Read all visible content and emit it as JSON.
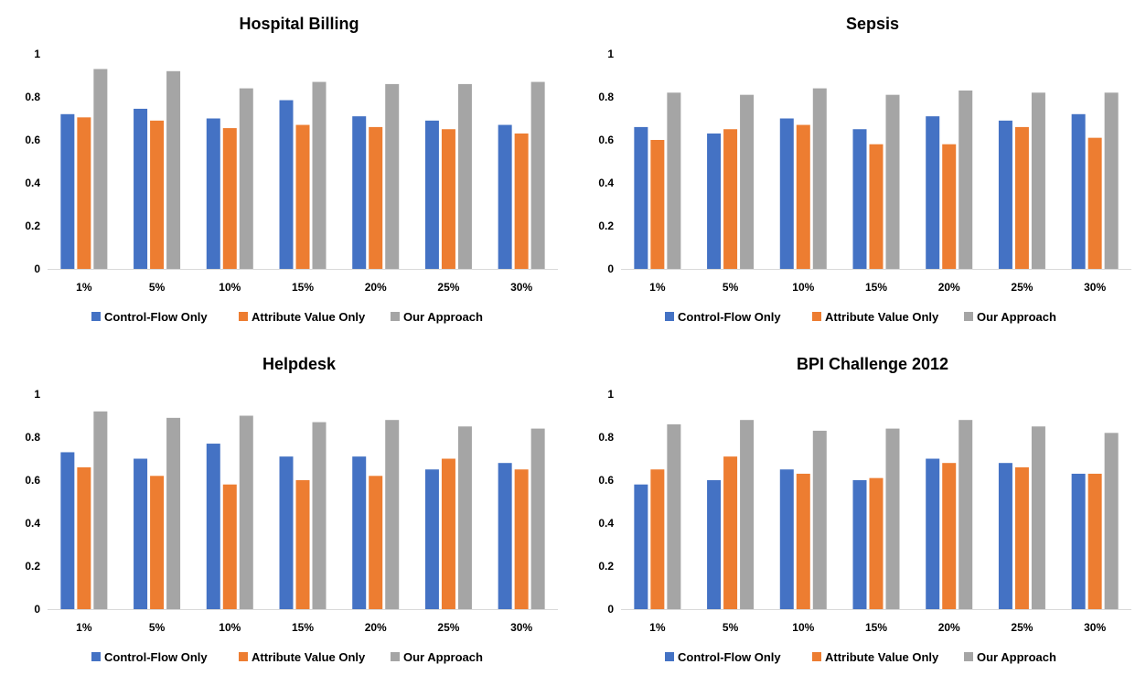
{
  "chart_data": [
    {
      "type": "bar",
      "title": "Hospital Billing",
      "categories": [
        "1%",
        "5%",
        "10%",
        "15%",
        "20%",
        "25%",
        "30%"
      ],
      "ylim": [
        0,
        1
      ],
      "yticks": [
        "0",
        "0.2",
        "0.4",
        "0.6",
        "0.8",
        "1"
      ],
      "grid": false,
      "legend": "bottom",
      "series": [
        {
          "name": "Control-Flow Only",
          "color": "#4472c4",
          "values": [
            0.72,
            0.745,
            0.7,
            0.785,
            0.71,
            0.69,
            0.67
          ]
        },
        {
          "name": "Attribute Value Only",
          "color": "#ed7d31",
          "values": [
            0.705,
            0.69,
            0.655,
            0.67,
            0.66,
            0.65,
            0.63
          ]
        },
        {
          "name": "Our Approach",
          "color": "#a5a5a5",
          "values": [
            0.93,
            0.92,
            0.84,
            0.87,
            0.86,
            0.86,
            0.87
          ]
        }
      ]
    },
    {
      "type": "bar",
      "title": "Sepsis",
      "categories": [
        "1%",
        "5%",
        "10%",
        "15%",
        "20%",
        "25%",
        "30%"
      ],
      "ylim": [
        0,
        1
      ],
      "yticks": [
        "0",
        "0.2",
        "0.4",
        "0.6",
        "0.8",
        "1"
      ],
      "grid": false,
      "legend": "bottom",
      "series": [
        {
          "name": "Control-Flow Only",
          "color": "#4472c4",
          "values": [
            0.66,
            0.63,
            0.7,
            0.65,
            0.71,
            0.69,
            0.72
          ]
        },
        {
          "name": "Attribute Value Only",
          "color": "#ed7d31",
          "values": [
            0.6,
            0.65,
            0.67,
            0.58,
            0.58,
            0.66,
            0.61
          ]
        },
        {
          "name": "Our Approach",
          "color": "#a5a5a5",
          "values": [
            0.82,
            0.81,
            0.84,
            0.81,
            0.83,
            0.82,
            0.82
          ]
        }
      ]
    },
    {
      "type": "bar",
      "title": "Helpdesk",
      "categories": [
        "1%",
        "5%",
        "10%",
        "15%",
        "20%",
        "25%",
        "30%"
      ],
      "ylim": [
        0,
        1
      ],
      "yticks": [
        "0",
        "0.2",
        "0.4",
        "0.6",
        "0.8",
        "1"
      ],
      "grid": false,
      "legend": "bottom",
      "series": [
        {
          "name": "Control-Flow Only",
          "color": "#4472c4",
          "values": [
            0.73,
            0.7,
            0.77,
            0.71,
            0.71,
            0.65,
            0.68
          ]
        },
        {
          "name": "Attribute Value Only",
          "color": "#ed7d31",
          "values": [
            0.66,
            0.62,
            0.58,
            0.6,
            0.62,
            0.7,
            0.65
          ]
        },
        {
          "name": "Our Approach",
          "color": "#a5a5a5",
          "values": [
            0.92,
            0.89,
            0.9,
            0.87,
            0.88,
            0.85,
            0.84
          ]
        }
      ]
    },
    {
      "type": "bar",
      "title": "BPI Challenge 2012",
      "categories": [
        "1%",
        "5%",
        "10%",
        "15%",
        "20%",
        "25%",
        "30%"
      ],
      "ylim": [
        0,
        1
      ],
      "yticks": [
        "0",
        "0.2",
        "0.4",
        "0.6",
        "0.8",
        "1"
      ],
      "grid": false,
      "legend": "bottom",
      "series": [
        {
          "name": "Control-Flow Only",
          "color": "#4472c4",
          "values": [
            0.58,
            0.6,
            0.65,
            0.6,
            0.7,
            0.68,
            0.63
          ]
        },
        {
          "name": "Attribute Value Only",
          "color": "#ed7d31",
          "values": [
            0.65,
            0.71,
            0.63,
            0.61,
            0.68,
            0.66,
            0.63
          ]
        },
        {
          "name": "Our Approach",
          "color": "#a5a5a5",
          "values": [
            0.86,
            0.88,
            0.83,
            0.84,
            0.88,
            0.85,
            0.82
          ]
        }
      ]
    }
  ]
}
